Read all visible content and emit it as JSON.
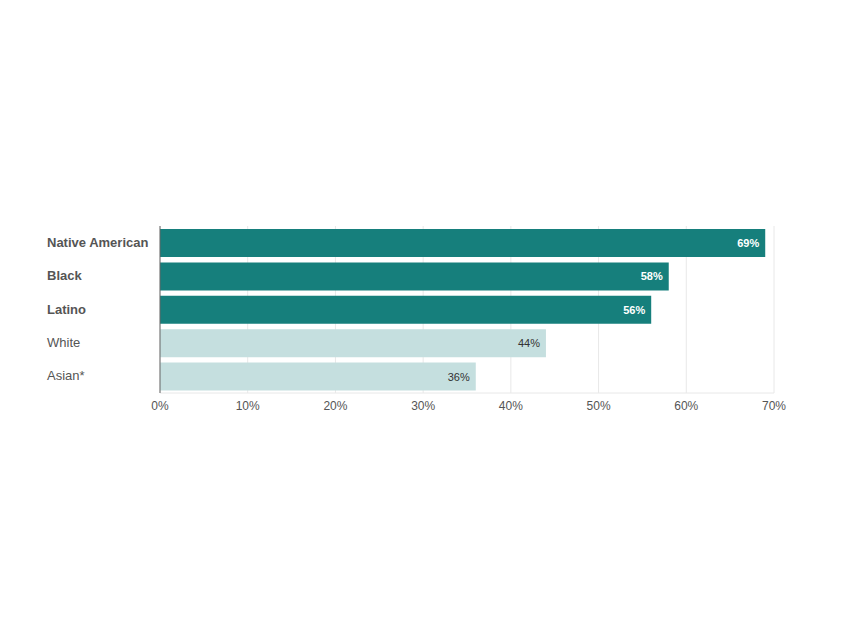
{
  "chart_data": {
    "type": "bar",
    "orientation": "horizontal",
    "categories": [
      "Native American",
      "Black",
      "Latino",
      "White",
      "Asian*"
    ],
    "values": [
      69,
      58,
      56,
      44,
      36
    ],
    "value_labels": [
      "69%",
      "58%",
      "56%",
      "44%",
      "36%"
    ],
    "colors": [
      "#167f7c",
      "#167f7c",
      "#167f7c",
      "#c5dfdf",
      "#c5dfdf"
    ],
    "xlim": [
      0,
      70
    ],
    "xticks": [
      {
        "value": 0,
        "label": "0%"
      },
      {
        "value": 10,
        "label": "10%"
      },
      {
        "value": 20,
        "label": "20%"
      },
      {
        "value": 30,
        "label": "30%"
      },
      {
        "value": 40,
        "label": "40%"
      },
      {
        "value": 50,
        "label": "50%"
      },
      {
        "value": 60,
        "label": "60%"
      },
      {
        "value": 70,
        "label": "70%"
      }
    ],
    "grid": true,
    "data_labels": true
  }
}
